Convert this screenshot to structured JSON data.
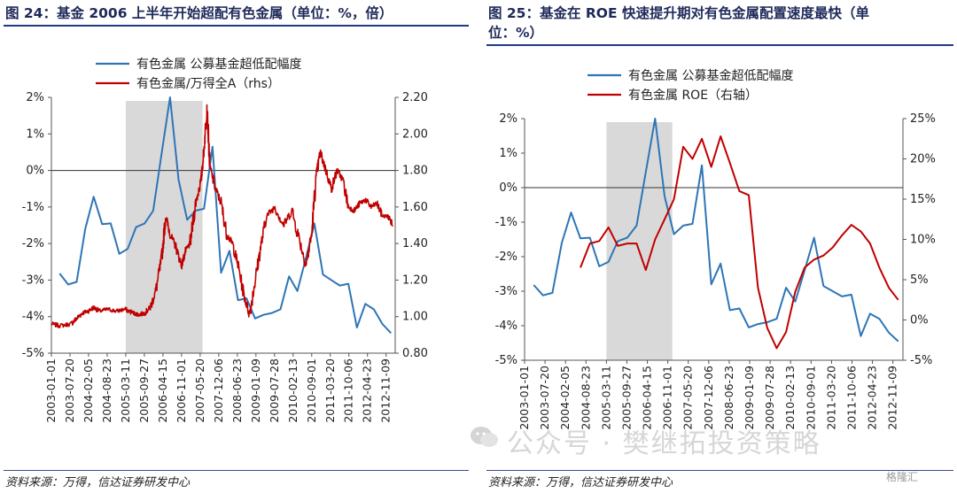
{
  "left_panel": {
    "title": "图 24：基金 2006 上半年开始超配有色金属（单位：%，倍）",
    "source": "资料来源：万得，信达证券研发中心"
  },
  "right_panel": {
    "title_line1": "图  25：基金在 ROE 快速提升期对有色金属配置速度最快（单",
    "title_line2": "位：%）",
    "source": "资料来源：万得，信达证券研发中心"
  },
  "watermark": "公众号 · 樊继拓投资策略",
  "logo": "格隆汇",
  "chart_data": [
    {
      "type": "line",
      "x_tick_labels": [
        "2003-01-01",
        "2003-07-20",
        "2004-02-05",
        "2004-08-23",
        "2005-03-11",
        "2005-09-27",
        "2006-04-15",
        "2006-11-01",
        "2007-05-20",
        "2007-12-06",
        "2008-06-23",
        "2009-01-09",
        "2009-07-28",
        "2010-02-13",
        "2010-09-01",
        "2011-03-20",
        "2011-10-06",
        "2012-04-23",
        "2012-11-09"
      ],
      "x_range": [
        "2003-01-01",
        "2013-02-15"
      ],
      "y_left": {
        "ticks": [
          "-5%",
          "-4%",
          "-3%",
          "-2%",
          "-1%",
          "0%",
          "1%",
          "2%"
        ],
        "ylim": [
          -5,
          2
        ]
      },
      "y_right": {
        "label": "rhs",
        "ticks": [
          "0.80",
          "1.00",
          "1.20",
          "1.40",
          "1.60",
          "1.80",
          "2.00",
          "2.20"
        ],
        "ylim": [
          0.8,
          2.2
        ]
      },
      "shaded_period": [
        "2005-03-11",
        "2007-06-15"
      ],
      "zero_line": true,
      "legend_position": "top",
      "series": [
        {
          "name": "有色金属 公募基金超低配幅度",
          "axis": "left",
          "color": "#2e75b6",
          "points": [
            [
              "2003-03-31",
              -2.82
            ],
            [
              "2003-06-30",
              -3.12
            ],
            [
              "2003-09-30",
              -3.05
            ],
            [
              "2003-12-31",
              -1.6
            ],
            [
              "2004-03-31",
              -0.72
            ],
            [
              "2004-06-30",
              -1.47
            ],
            [
              "2004-09-30",
              -1.45
            ],
            [
              "2004-12-31",
              -2.28
            ],
            [
              "2005-03-31",
              -2.15
            ],
            [
              "2005-06-30",
              -1.55
            ],
            [
              "2005-09-30",
              -1.45
            ],
            [
              "2005-12-31",
              -1.1
            ],
            [
              "2006-03-31",
              0.45
            ],
            [
              "2006-06-30",
              2.0
            ],
            [
              "2006-09-30",
              -0.25
            ],
            [
              "2006-12-31",
              -1.35
            ],
            [
              "2007-03-31",
              -1.1
            ],
            [
              "2007-06-30",
              -1.05
            ],
            [
              "2007-09-30",
              0.65
            ],
            [
              "2007-12-31",
              -2.8
            ],
            [
              "2008-03-31",
              -2.2
            ],
            [
              "2008-06-30",
              -3.55
            ],
            [
              "2008-09-30",
              -3.5
            ],
            [
              "2008-12-31",
              -4.05
            ],
            [
              "2009-03-31",
              -3.95
            ],
            [
              "2009-06-30",
              -3.9
            ],
            [
              "2009-09-30",
              -3.8
            ],
            [
              "2009-12-31",
              -2.9
            ],
            [
              "2010-03-31",
              -3.3
            ],
            [
              "2010-06-30",
              -2.4
            ],
            [
              "2010-09-30",
              -1.45
            ],
            [
              "2010-12-31",
              -2.85
            ],
            [
              "2011-03-31",
              -3.0
            ],
            [
              "2011-06-30",
              -3.15
            ],
            [
              "2011-09-30",
              -3.1
            ],
            [
              "2011-12-31",
              -4.3
            ],
            [
              "2012-03-31",
              -3.65
            ],
            [
              "2012-06-30",
              -3.8
            ],
            [
              "2012-09-30",
              -4.2
            ],
            [
              "2012-12-31",
              -4.45
            ]
          ]
        },
        {
          "name": "有色金属/万得全A（rhs）",
          "axis": "right",
          "color": "#c00000",
          "noisy": true,
          "points": [
            [
              "2003-01-01",
              0.96
            ],
            [
              "2003-04-01",
              0.95
            ],
            [
              "2003-08-01",
              0.96
            ],
            [
              "2003-10-01",
              0.99
            ],
            [
              "2003-12-01",
              1.02
            ],
            [
              "2004-02-01",
              1.03
            ],
            [
              "2004-04-01",
              1.05
            ],
            [
              "2004-06-01",
              1.03
            ],
            [
              "2004-09-01",
              1.04
            ],
            [
              "2004-12-01",
              1.03
            ],
            [
              "2005-03-01",
              1.04
            ],
            [
              "2005-06-01",
              1.02
            ],
            [
              "2005-08-01",
              1.01
            ],
            [
              "2005-10-01",
              1.02
            ],
            [
              "2005-12-01",
              1.05
            ],
            [
              "2006-02-01",
              1.15
            ],
            [
              "2006-04-01",
              1.32
            ],
            [
              "2006-05-15",
              1.55
            ],
            [
              "2006-07-01",
              1.45
            ],
            [
              "2006-09-01",
              1.38
            ],
            [
              "2006-11-01",
              1.28
            ],
            [
              "2006-12-15",
              1.36
            ],
            [
              "2007-02-01",
              1.4
            ],
            [
              "2007-04-01",
              1.62
            ],
            [
              "2007-06-01",
              1.75
            ],
            [
              "2007-07-01",
              1.92
            ],
            [
              "2007-08-01",
              2.15
            ],
            [
              "2007-09-01",
              1.82
            ],
            [
              "2007-11-01",
              1.7
            ],
            [
              "2008-01-01",
              1.62
            ],
            [
              "2008-03-01",
              1.45
            ],
            [
              "2008-05-01",
              1.4
            ],
            [
              "2008-07-01",
              1.28
            ],
            [
              "2008-09-01",
              1.12
            ],
            [
              "2008-11-01",
              1.01
            ],
            [
              "2009-01-01",
              1.2
            ],
            [
              "2009-03-01",
              1.38
            ],
            [
              "2009-05-01",
              1.55
            ],
            [
              "2009-08-01",
              1.6
            ],
            [
              "2009-11-01",
              1.5
            ],
            [
              "2010-02-01",
              1.58
            ],
            [
              "2010-05-01",
              1.4
            ],
            [
              "2010-07-01",
              1.28
            ],
            [
              "2010-09-01",
              1.45
            ],
            [
              "2010-10-15",
              1.75
            ],
            [
              "2010-12-01",
              1.9
            ],
            [
              "2011-02-01",
              1.8
            ],
            [
              "2011-04-01",
              1.7
            ],
            [
              "2011-06-01",
              1.8
            ],
            [
              "2011-08-01",
              1.75
            ],
            [
              "2011-10-01",
              1.6
            ],
            [
              "2011-12-01",
              1.58
            ],
            [
              "2012-02-01",
              1.62
            ],
            [
              "2012-04-01",
              1.64
            ],
            [
              "2012-06-01",
              1.6
            ],
            [
              "2012-08-01",
              1.62
            ],
            [
              "2012-10-01",
              1.55
            ],
            [
              "2012-12-01",
              1.55
            ],
            [
              "2013-01-20",
              1.5
            ]
          ]
        }
      ]
    },
    {
      "type": "line",
      "x_tick_labels": [
        "2003-01-01",
        "2003-07-20",
        "2004-02-05",
        "2004-08-23",
        "2005-03-11",
        "2005-09-27",
        "2006-04-15",
        "2006-11-01",
        "2007-05-20",
        "2007-12-06",
        "2008-06-23",
        "2009-01-09",
        "2009-07-28",
        "2010-02-13",
        "2010-09-01",
        "2011-03-20",
        "2011-10-06",
        "2012-04-23",
        "2012-11-09"
      ],
      "x_range": [
        "2003-01-01",
        "2013-02-15"
      ],
      "y_left": {
        "ticks": [
          "-5%",
          "-4%",
          "-3%",
          "-2%",
          "-1%",
          "0%",
          "1%",
          "2%"
        ],
        "ylim": [
          -5,
          2
        ]
      },
      "y_right": {
        "label": "右轴",
        "ticks": [
          "-5%",
          "0%",
          "5%",
          "10%",
          "15%",
          "20%",
          "25%"
        ],
        "ylim": [
          -5,
          25
        ]
      },
      "shaded_period": [
        "2005-03-11",
        "2006-12-15"
      ],
      "zero_line": true,
      "legend_position": "top",
      "series": [
        {
          "name": "有色金属 公募基金超低配幅度",
          "axis": "left",
          "color": "#2e75b6",
          "points": [
            [
              "2003-03-31",
              -2.82
            ],
            [
              "2003-06-30",
              -3.12
            ],
            [
              "2003-09-30",
              -3.05
            ],
            [
              "2003-12-31",
              -1.6
            ],
            [
              "2004-03-31",
              -0.72
            ],
            [
              "2004-06-30",
              -1.47
            ],
            [
              "2004-09-30",
              -1.45
            ],
            [
              "2004-12-31",
              -2.28
            ],
            [
              "2005-03-31",
              -2.15
            ],
            [
              "2005-06-30",
              -1.55
            ],
            [
              "2005-09-30",
              -1.45
            ],
            [
              "2005-12-31",
              -1.1
            ],
            [
              "2006-03-31",
              0.45
            ],
            [
              "2006-06-30",
              2.0
            ],
            [
              "2006-09-30",
              -0.25
            ],
            [
              "2006-12-31",
              -1.35
            ],
            [
              "2007-03-31",
              -1.1
            ],
            [
              "2007-06-30",
              -1.05
            ],
            [
              "2007-09-30",
              0.65
            ],
            [
              "2007-12-31",
              -2.8
            ],
            [
              "2008-03-31",
              -2.2
            ],
            [
              "2008-06-30",
              -3.55
            ],
            [
              "2008-09-30",
              -3.5
            ],
            [
              "2008-12-31",
              -4.05
            ],
            [
              "2009-03-31",
              -3.95
            ],
            [
              "2009-06-30",
              -3.9
            ],
            [
              "2009-09-30",
              -3.8
            ],
            [
              "2009-12-31",
              -2.9
            ],
            [
              "2010-03-31",
              -3.3
            ],
            [
              "2010-06-30",
              -2.4
            ],
            [
              "2010-09-30",
              -1.45
            ],
            [
              "2010-12-31",
              -2.85
            ],
            [
              "2011-03-31",
              -3.0
            ],
            [
              "2011-06-30",
              -3.15
            ],
            [
              "2011-09-30",
              -3.1
            ],
            [
              "2011-12-31",
              -4.3
            ],
            [
              "2012-03-31",
              -3.65
            ],
            [
              "2012-06-30",
              -3.8
            ],
            [
              "2012-09-30",
              -4.2
            ],
            [
              "2012-12-31",
              -4.45
            ]
          ]
        },
        {
          "name": "有色金属 ROE（右轴）",
          "axis": "right",
          "color": "#c00000",
          "points": [
            [
              "2004-06-30",
              6.5
            ],
            [
              "2004-09-30",
              9.5
            ],
            [
              "2004-12-31",
              9.8
            ],
            [
              "2005-03-31",
              11.5
            ],
            [
              "2005-06-30",
              9.2
            ],
            [
              "2005-09-30",
              9.5
            ],
            [
              "2005-12-31",
              9.5
            ],
            [
              "2006-03-31",
              6.2
            ],
            [
              "2006-06-30",
              10.0
            ],
            [
              "2006-09-30",
              12.5
            ],
            [
              "2006-12-31",
              15.0
            ],
            [
              "2007-03-31",
              21.5
            ],
            [
              "2007-06-30",
              20.0
            ],
            [
              "2007-09-30",
              22.5
            ],
            [
              "2007-12-31",
              19.0
            ],
            [
              "2008-03-31",
              22.8
            ],
            [
              "2008-06-30",
              19.5
            ],
            [
              "2008-09-30",
              16.0
            ],
            [
              "2008-12-31",
              15.5
            ],
            [
              "2009-03-31",
              4.0
            ],
            [
              "2009-06-30",
              -1.0
            ],
            [
              "2009-09-30",
              -3.5
            ],
            [
              "2009-12-31",
              -1.5
            ],
            [
              "2010-03-31",
              3.5
            ],
            [
              "2010-06-30",
              6.5
            ],
            [
              "2010-09-30",
              7.5
            ],
            [
              "2010-12-31",
              8.0
            ],
            [
              "2011-03-31",
              9.0
            ],
            [
              "2011-06-30",
              10.5
            ],
            [
              "2011-09-30",
              11.8
            ],
            [
              "2011-12-31",
              11.0
            ],
            [
              "2012-03-31",
              9.5
            ],
            [
              "2012-06-30",
              6.5
            ],
            [
              "2012-09-30",
              4.0
            ],
            [
              "2012-12-31",
              2.5
            ]
          ]
        }
      ]
    }
  ]
}
